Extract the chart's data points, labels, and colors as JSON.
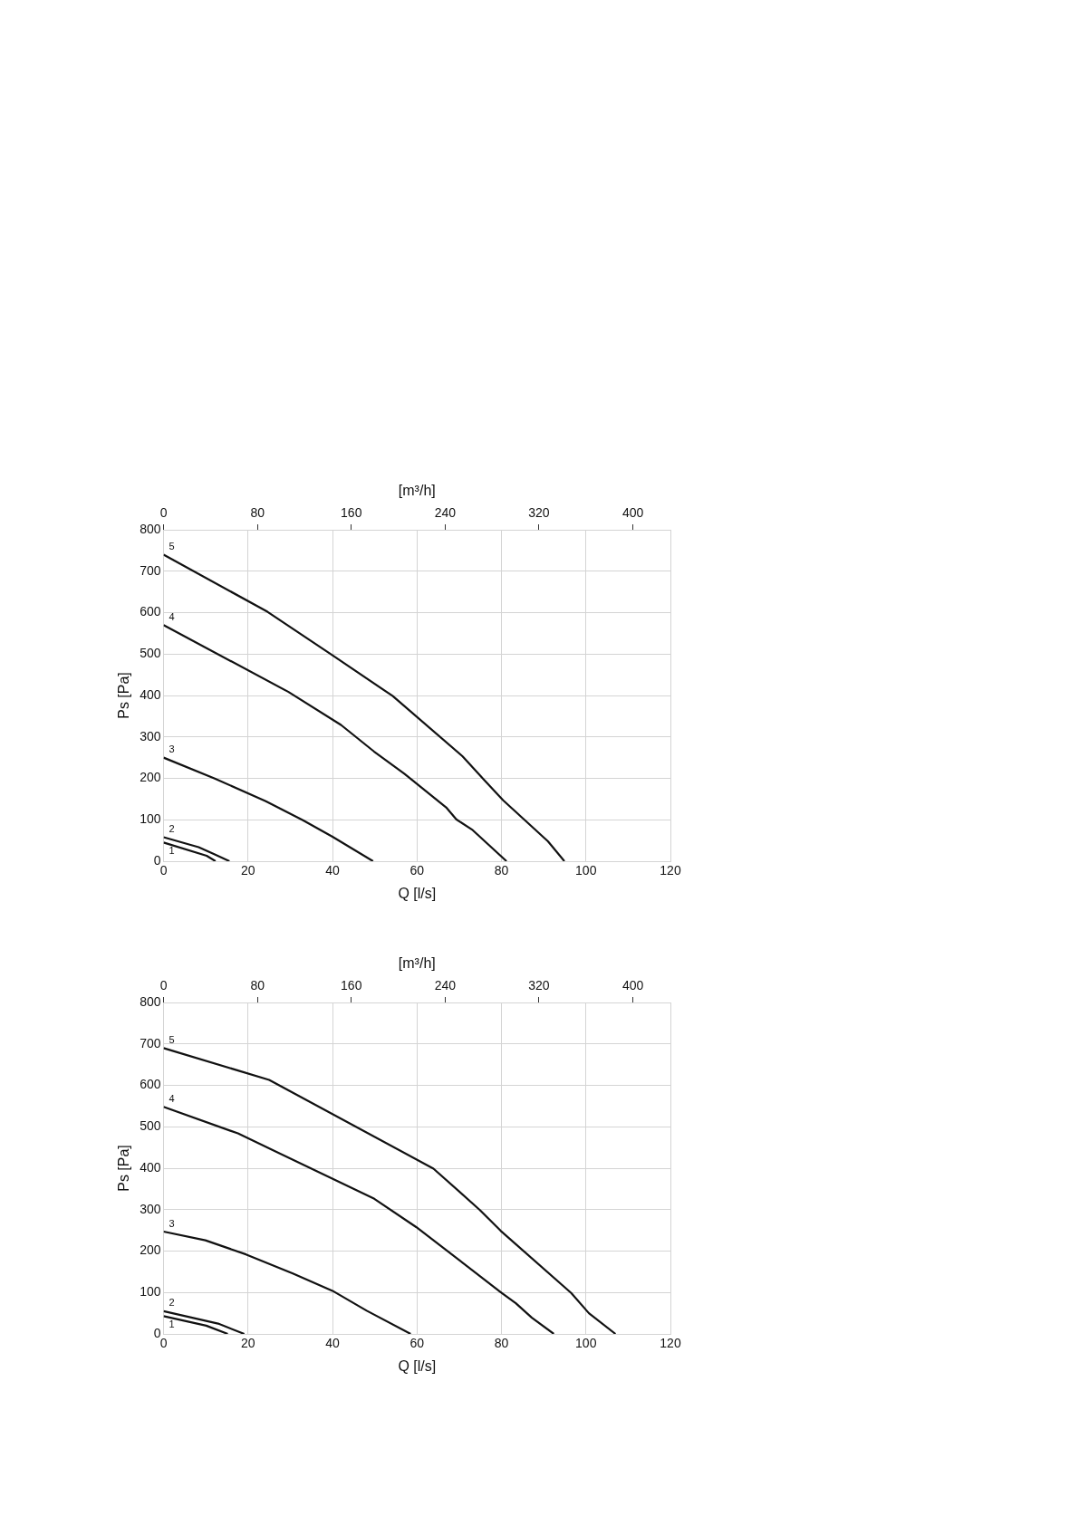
{
  "chart_data": [
    {
      "type": "line",
      "xlabel": "Q [l/s]",
      "ylabel": "Ps [Pa]",
      "x2label": "[m³/h]",
      "xlim": [
        0,
        120
      ],
      "xticks": [
        0,
        20,
        40,
        60,
        80,
        100,
        120
      ],
      "ylim": [
        0,
        800
      ],
      "yticks": [
        0,
        100,
        200,
        300,
        400,
        500,
        600,
        700,
        800
      ],
      "x2lim": [
        0,
        432
      ],
      "x2ticks": [
        0,
        80,
        160,
        240,
        320,
        400
      ],
      "grid": true,
      "marker": "none",
      "line_style": "solid",
      "series": [
        {
          "name": "1",
          "color": "#111111",
          "x": [
            0,
            10.2,
            12.3
          ],
          "values": [
            45,
            13,
            0
          ]
        },
        {
          "name": "2",
          "color": "#111111",
          "x": [
            0,
            8.3,
            12,
            15.6
          ],
          "values": [
            58,
            34,
            17,
            0
          ]
        },
        {
          "name": "3",
          "color": "#111111",
          "x": [
            0,
            12,
            24.2,
            33,
            40,
            49.6
          ],
          "values": [
            250,
            200,
            145,
            99,
            59,
            0
          ]
        },
        {
          "name": "4",
          "color": "#111111",
          "x": [
            0,
            29.5,
            42,
            49.8,
            57,
            66.9,
            69.3,
            73.2,
            81.2
          ],
          "values": [
            570,
            409,
            329,
            265,
            211,
            130,
            101,
            75,
            0
          ]
        },
        {
          "name": "5",
          "color": "#111111",
          "x": [
            0,
            24.6,
            40,
            54.2,
            70.8,
            76,
            80.4,
            91,
            94.9
          ],
          "values": [
            740,
            602,
            497,
            399,
            253,
            195,
            147,
            48,
            0
          ]
        }
      ]
    },
    {
      "type": "line",
      "xlabel": "Q [l/s]",
      "ylabel": "Ps [Pa]",
      "x2label": "[m³/h]",
      "xlim": [
        0,
        120
      ],
      "xticks": [
        0,
        20,
        40,
        60,
        80,
        100,
        120
      ],
      "ylim": [
        0,
        800
      ],
      "yticks": [
        0,
        100,
        200,
        300,
        400,
        500,
        600,
        700,
        800
      ],
      "x2lim": [
        0,
        432
      ],
      "x2ticks": [
        0,
        80,
        160,
        240,
        320,
        400
      ],
      "grid": true,
      "marker": "none",
      "line_style": "solid",
      "series": [
        {
          "name": "1",
          "color": "#111111",
          "x": [
            0,
            10.1,
            15.2
          ],
          "values": [
            43,
            20,
            0
          ]
        },
        {
          "name": "2",
          "color": "#111111",
          "x": [
            0,
            12.9,
            19.1
          ],
          "values": [
            55,
            25,
            0
          ]
        },
        {
          "name": "3",
          "color": "#111111",
          "x": [
            0,
            9.9,
            19.5,
            30.6,
            40,
            48.1,
            58.5
          ],
          "values": [
            247,
            226,
            192,
            146,
            104,
            56,
            0
          ]
        },
        {
          "name": "4",
          "color": "#111111",
          "x": [
            0,
            17.6,
            49.9,
            59.8,
            79.8,
            83.4,
            87.2,
            92.4
          ],
          "values": [
            548,
            484,
            326,
            258,
            101,
            74,
            39,
            0
          ]
        },
        {
          "name": "5",
          "color": "#111111",
          "x": [
            0,
            25,
            63.9,
            74.9,
            79.8,
            96.5,
            100.7,
            107
          ],
          "values": [
            690,
            613,
            399,
            299,
            249,
            99,
            50,
            0
          ]
        }
      ]
    }
  ]
}
